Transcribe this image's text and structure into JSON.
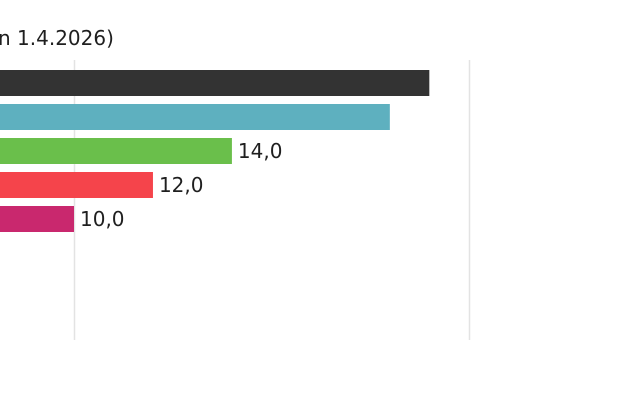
{
  "chart_data": {
    "type": "bar",
    "orientation": "horizontal",
    "title_visible_fragment": "n 1.4.2026)",
    "series": [
      {
        "value": 19.0,
        "value_label": "",
        "color": "#333333"
      },
      {
        "value": 18.0,
        "value_label": "",
        "color": "#5eb0bf"
      },
      {
        "value": 14.0,
        "value_label": "14,0",
        "color": "#6abf4b"
      },
      {
        "value": 12.0,
        "value_label": "12,0",
        "color": "#f5444b"
      },
      {
        "value": 10.0,
        "value_label": "10,0",
        "color": "#c9286e"
      }
    ],
    "gridlines": [
      10,
      20
    ],
    "grid": true
  }
}
